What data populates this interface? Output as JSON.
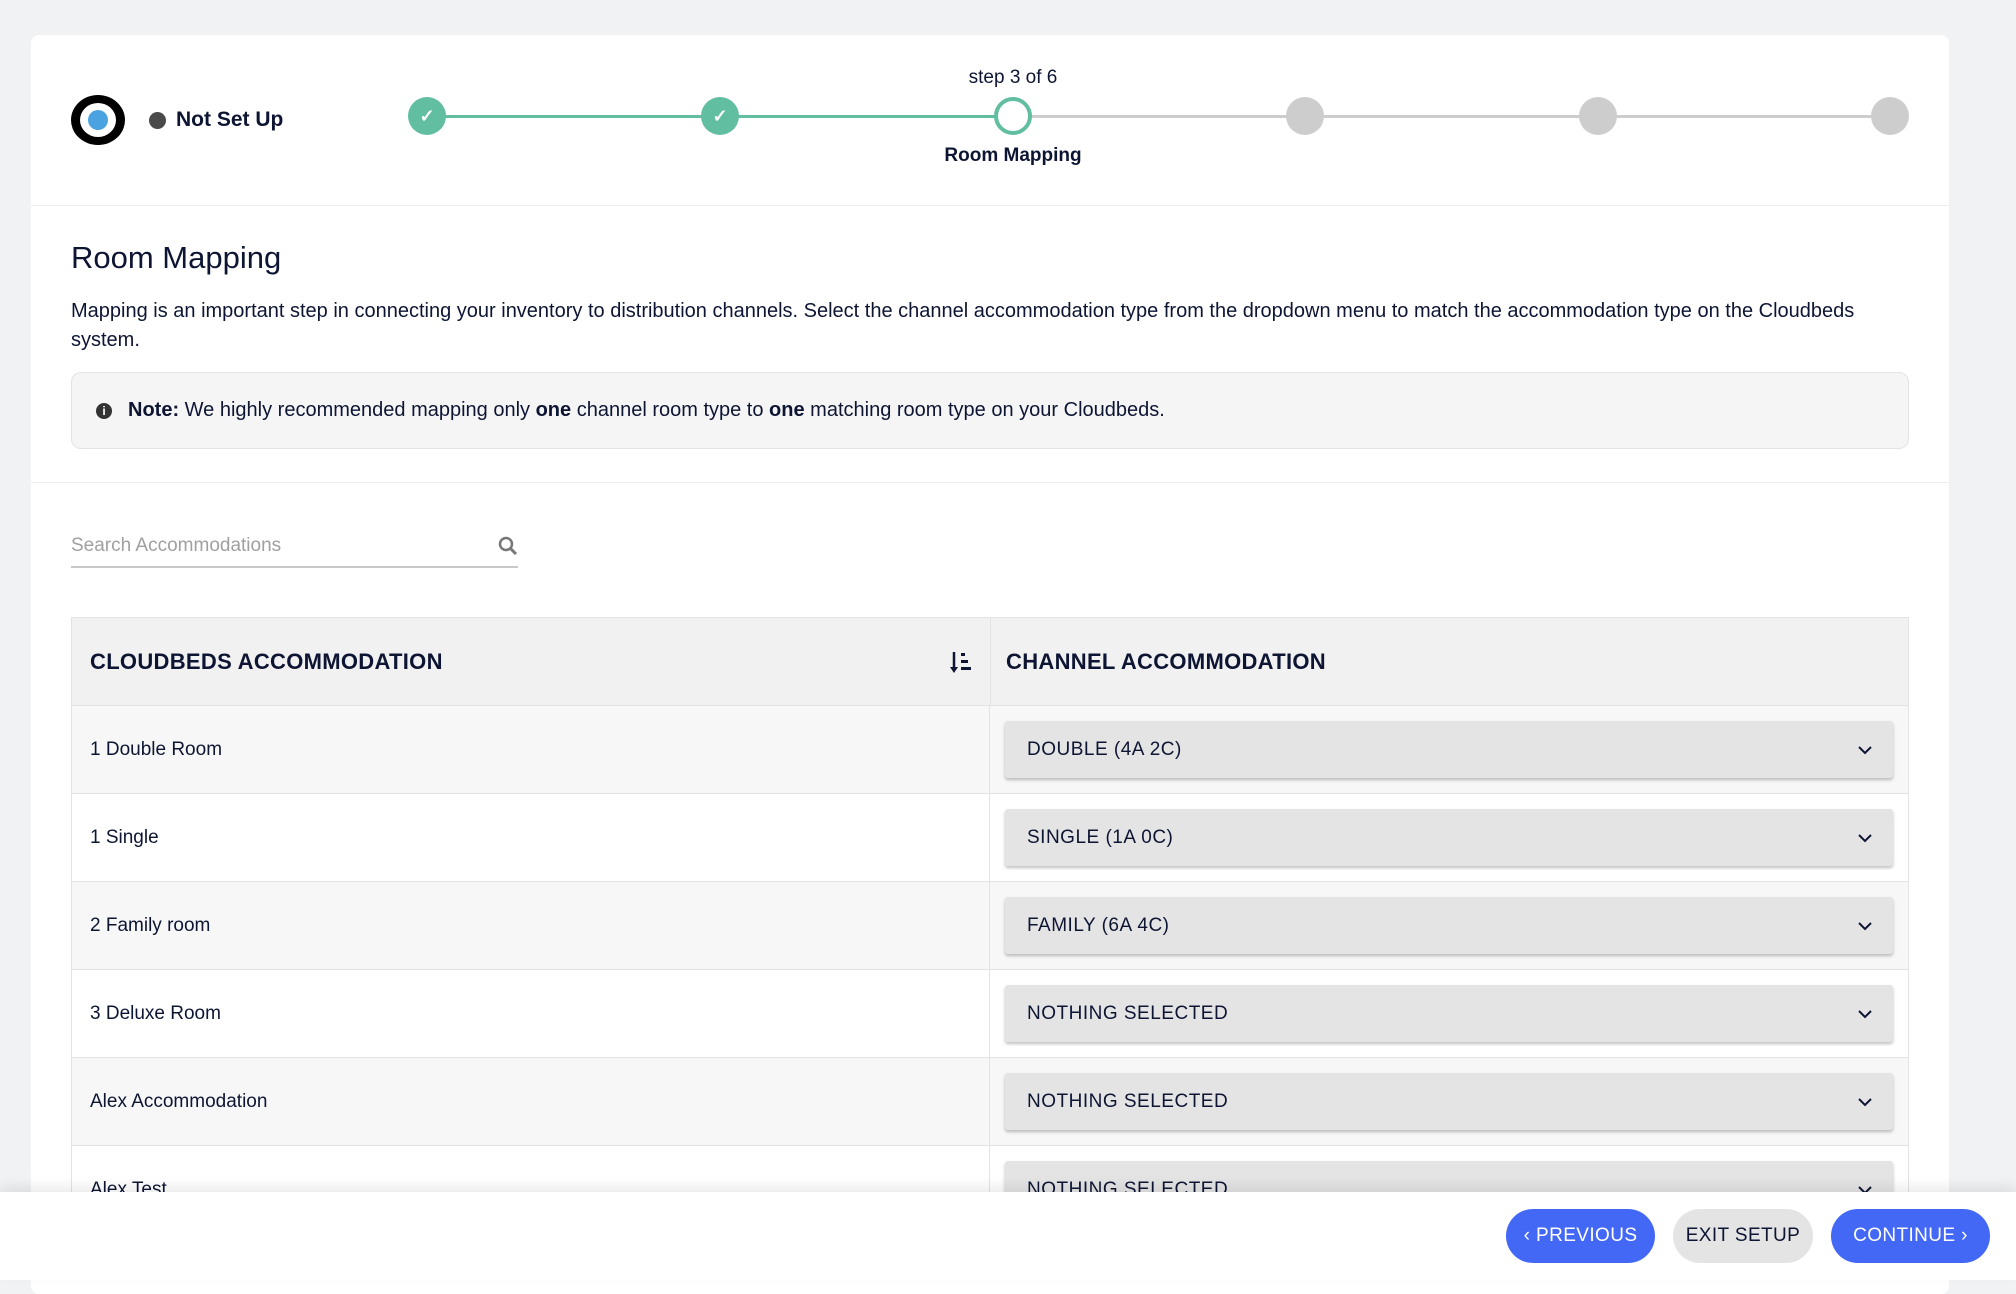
{
  "header": {
    "status": "Not Set Up",
    "step_counter": "step 3 of 6",
    "current_step_label": "Room Mapping",
    "steps": [
      "done",
      "done",
      "current",
      "todo",
      "todo",
      "todo"
    ],
    "accent_color": "#62bea0"
  },
  "main": {
    "title": "Room Mapping",
    "description": "Mapping is an important step in connecting your inventory to distribution channels. Select the channel accommodation type from the dropdown menu to match the accommodation type on the Cloudbeds system.",
    "note": {
      "label": "Note:",
      "t1": " We highly recommended mapping only ",
      "b1": "one",
      "t2": " channel room type to ",
      "b2": "one",
      "t3": " matching room type on your Cloudbeds."
    },
    "search_placeholder": "Search Accommodations"
  },
  "table": {
    "col1": "CLOUDBEDS ACCOMMODATION",
    "col2": "CHANNEL ACCOMMODATION",
    "rows": [
      {
        "name": "1 Double Room",
        "channel": "DOUBLE (4A 2C)"
      },
      {
        "name": "1 Single",
        "channel": "SINGLE (1A 0C)"
      },
      {
        "name": "2 Family room",
        "channel": "FAMILY (6A 4C)"
      },
      {
        "name": "3 Deluxe Room",
        "channel": "NOTHING SELECTED"
      },
      {
        "name": "Alex Accommodation",
        "channel": "NOTHING SELECTED"
      },
      {
        "name": "Alex Test",
        "channel": "NOTHING SELECTED"
      }
    ]
  },
  "footer": {
    "previous": "‹ PREVIOUS",
    "exit": "EXIT SETUP",
    "continue": "CONTINUE ›",
    "button_color": "#4368f6"
  }
}
